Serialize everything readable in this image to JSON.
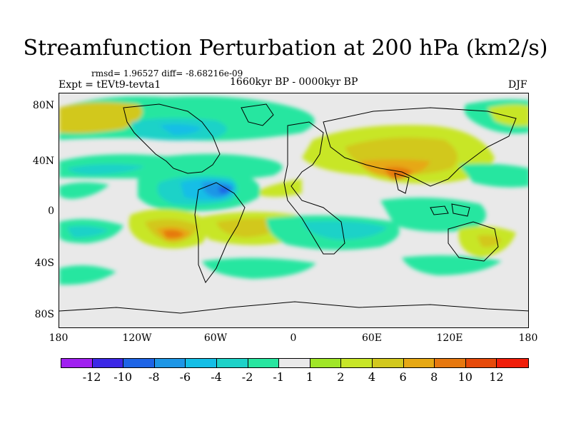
{
  "title": "Streamfunction Perturbation at 200 hPa (km2/s)",
  "stats": "rmsd= 1.96527 diff= -8.68216e-09",
  "experiment": "Expt = tEVt9-tevta1",
  "period": "1660kyr BP - 0000kyr BP",
  "season": "DJF",
  "lat_labels": [
    "80N",
    "40N",
    "0",
    "40S",
    "80S"
  ],
  "lon_labels": [
    "180",
    "120W",
    "60W",
    "0",
    "60E",
    "120E",
    "180"
  ],
  "colorbar": {
    "colors": [
      "#a020f0",
      "#3c28e6",
      "#1e64e6",
      "#1e96e6",
      "#14bee6",
      "#1ed2c8",
      "#28e6a0",
      "#e9e9e9",
      "#a0e628",
      "#c8e628",
      "#d2c81e",
      "#e6a814",
      "#e6780f",
      "#e64a0a",
      "#f01e0a"
    ],
    "labels": [
      "-12",
      "-10",
      "-8",
      "-6",
      "-4",
      "-2",
      "-1",
      "1",
      "2",
      "4",
      "6",
      "8",
      "10",
      "12"
    ]
  }
}
